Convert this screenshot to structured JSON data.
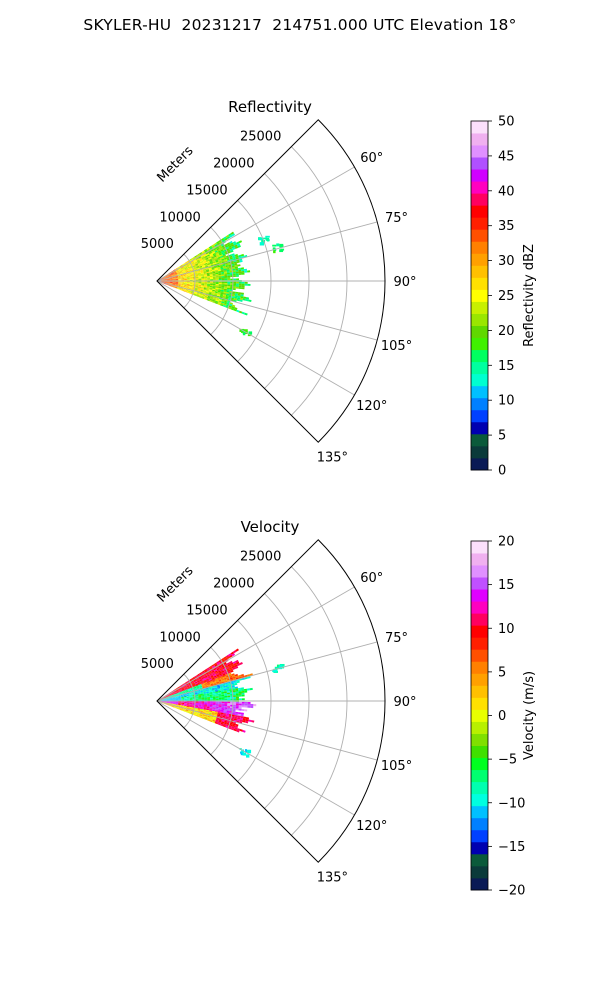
{
  "figure": {
    "suptitle": "SKYLER-HU  20231217  214751.000 UTC Elevation 18°"
  },
  "colors": {
    "axis": "#000000",
    "grid": "#b0b0b0"
  },
  "chart_data": [
    {
      "type": "heatmap",
      "projection": "polar-sector",
      "title": "Reflectivity",
      "radial_label": "Meters",
      "radial_ticks": [
        5000,
        10000,
        15000,
        20000,
        25000
      ],
      "rlim": [
        0,
        30000
      ],
      "angular_ticks": [
        "60°",
        "75°",
        "90°",
        "105°",
        "120°",
        "135°"
      ],
      "azimuth_range_deg": [
        45,
        135
      ],
      "grid": true,
      "colorbar": {
        "label": "Reflectivity dBZ",
        "ticks": [
          0,
          5,
          10,
          15,
          20,
          25,
          30,
          35,
          40,
          45,
          50
        ],
        "range": [
          0,
          50
        ],
        "colors": [
          "#0a1a55",
          "#0a3a3a",
          "#0a5a3a",
          "#0000b0",
          "#0040ff",
          "#0080ff",
          "#00c0ff",
          "#00ffd0",
          "#00ffa0",
          "#00ff60",
          "#40f000",
          "#60d800",
          "#9ae600",
          "#c8f000",
          "#ffff00",
          "#ffe000",
          "#ffc000",
          "#ffa000",
          "#ff8000",
          "#ff5000",
          "#ff2000",
          "#ff0000",
          "#ff0060",
          "#ff00c0",
          "#d000ff",
          "#b050ff",
          "#e090ff",
          "#f0b0f0",
          "#fbe0fb"
        ]
      },
      "echo": {
        "sector_start_deg": 57,
        "sector_end_deg": 111,
        "max_range_m": 12700,
        "distant_patches": [
          {
            "az_deg": 68,
            "range_m": 14800,
            "value": 14
          },
          {
            "az_deg": 74,
            "range_m": 16400,
            "value": 16
          },
          {
            "az_deg": 120,
            "range_m": 13200,
            "value": 17
          }
        ]
      }
    },
    {
      "type": "heatmap",
      "projection": "polar-sector",
      "title": "Velocity",
      "radial_label": "Meters",
      "radial_ticks": [
        5000,
        10000,
        15000,
        20000,
        25000
      ],
      "rlim": [
        0,
        30000
      ],
      "angular_ticks": [
        "60°",
        "75°",
        "90°",
        "105°",
        "120°",
        "135°"
      ],
      "azimuth_range_deg": [
        45,
        135
      ],
      "grid": true,
      "colorbar": {
        "label": "Velocity (m/s)",
        "ticks": [
          -20,
          -15,
          -10,
          -5,
          0,
          5,
          10,
          15,
          20
        ],
        "range": [
          -20,
          20
        ],
        "colors": [
          "#0a1a55",
          "#0a3a3a",
          "#0a5a3a",
          "#0000b0",
          "#0040ff",
          "#0080ff",
          "#00c0ff",
          "#00ffe0",
          "#00ffb0",
          "#00ff70",
          "#00ff20",
          "#40e000",
          "#80e000",
          "#b8f000",
          "#e8ff00",
          "#ffe000",
          "#ffc000",
          "#ffa000",
          "#ff8000",
          "#ff5000",
          "#ff2000",
          "#ff0000",
          "#ff0060",
          "#ff00c0",
          "#e000ff",
          "#c050ff",
          "#e090ff",
          "#f0b0f0",
          "#fbe0fb"
        ]
      },
      "echo": {
        "sector_start_deg": 57,
        "sector_end_deg": 111,
        "max_range_m": 12700,
        "distant_patches": [
          {
            "az_deg": 74,
            "range_m": 16400,
            "value": -9
          },
          {
            "az_deg": 120,
            "range_m": 13200,
            "value": -10
          }
        ]
      }
    }
  ]
}
